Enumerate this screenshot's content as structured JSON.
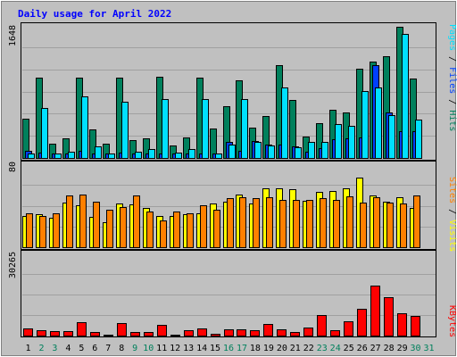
{
  "title": "Daily usage for April 2022",
  "colors": {
    "background": "#c0c0c0",
    "plot_background": "#c0c0c0",
    "grid": "#a0a0a0",
    "title": "#0000ff",
    "hits": "#00805c",
    "files": "#0040ff",
    "pages": "#00e0ff",
    "visits": "#ffff00",
    "sites": "#ff8000",
    "kbytes": "#ff0000",
    "axis_weekday": "#000000",
    "axis_weekend": "#00805c"
  },
  "chart_data": [
    {
      "type": "bar",
      "panel": "hits_files_pages",
      "ymax_label": "1648",
      "ylim": [
        0,
        1648
      ],
      "x": [
        1,
        2,
        3,
        4,
        5,
        6,
        7,
        8,
        9,
        10,
        11,
        12,
        13,
        14,
        15,
        16,
        17,
        18,
        19,
        20,
        21,
        22,
        23,
        24,
        25,
        26,
        27,
        28,
        29,
        30
      ],
      "series": [
        {
          "name": "Hits",
          "values": [
            485,
            990,
            180,
            240,
            995,
            350,
            175,
            995,
            220,
            240,
            1010,
            150,
            250,
            990,
            370,
            640,
            960,
            380,
            520,
            1155,
            720,
            270,
            435,
            595,
            565,
            1105,
            1200,
            1260,
            1630,
            980
          ]
        },
        {
          "name": "Files",
          "values": [
            90,
            70,
            60,
            60,
            90,
            50,
            50,
            70,
            50,
            50,
            60,
            60,
            50,
            60,
            50,
            200,
            90,
            210,
            170,
            165,
            145,
            80,
            120,
            230,
            240,
            250,
            1150,
            560,
            330,
            330
          ]
        },
        {
          "name": "Pages",
          "values": [
            50,
            620,
            60,
            80,
            760,
            140,
            60,
            700,
            80,
            110,
            735,
            70,
            110,
            725,
            60,
            170,
            725,
            200,
            160,
            875,
            130,
            200,
            195,
            420,
            400,
            825,
            875,
            535,
            1535,
            480
          ]
        }
      ]
    },
    {
      "type": "bar",
      "panel": "visits_sites",
      "ymax_label": "80",
      "ylim": [
        0,
        80
      ],
      "x": [
        1,
        2,
        3,
        4,
        5,
        6,
        7,
        8,
        9,
        10,
        11,
        12,
        13,
        14,
        15,
        16,
        17,
        18,
        19,
        20,
        21,
        22,
        23,
        24,
        25,
        26,
        27,
        28,
        29,
        30
      ],
      "series": [
        {
          "name": "Visits",
          "values": [
            30,
            32,
            28,
            43,
            40,
            29,
            24,
            42,
            41,
            38,
            30,
            30,
            32,
            33,
            42,
            44,
            51,
            42,
            57,
            57,
            56,
            45,
            53,
            54,
            57,
            67,
            50,
            44,
            48,
            38
          ]
        },
        {
          "name": "Sites",
          "values": [
            33,
            30,
            33,
            50,
            51,
            44,
            36,
            39,
            50,
            34,
            26,
            34,
            33,
            40,
            36,
            47,
            48,
            47,
            48,
            46,
            46,
            46,
            47,
            46,
            49,
            43,
            48,
            43,
            42,
            50
          ]
        }
      ]
    },
    {
      "type": "bar",
      "panel": "kbytes",
      "ymax_label": "30265",
      "ylim": [
        0,
        30265
      ],
      "x": [
        1,
        2,
        3,
        4,
        5,
        6,
        7,
        8,
        9,
        10,
        11,
        12,
        13,
        14,
        15,
        16,
        17,
        18,
        19,
        20,
        21,
        22,
        23,
        24,
        25,
        26,
        27,
        28,
        29,
        30
      ],
      "series": [
        {
          "name": "KBytes",
          "values": [
            2700,
            2100,
            1700,
            1700,
            5000,
            1200,
            400,
            4500,
            1300,
            1300,
            3900,
            400,
            2000,
            2600,
            700,
            2300,
            2300,
            2000,
            4200,
            2200,
            1200,
            3100,
            7500,
            2100,
            5200,
            9900,
            18300,
            14000,
            8200,
            7300
          ]
        }
      ]
    }
  ],
  "legends": {
    "top": [
      {
        "text": "Pages",
        "color_key": "pages"
      },
      {
        "text": " / ",
        "color_key": "axis_weekday"
      },
      {
        "text": "Files",
        "color_key": "files"
      },
      {
        "text": " / ",
        "color_key": "axis_weekday"
      },
      {
        "text": "Hits",
        "color_key": "hits"
      }
    ],
    "middle": [
      {
        "text": "Sites",
        "color_key": "sites"
      },
      {
        "text": " / ",
        "color_key": "axis_weekday"
      },
      {
        "text": "Visits",
        "color_key": "visits"
      }
    ],
    "bottom": [
      {
        "text": "KBytes",
        "color_key": "kbytes"
      }
    ]
  },
  "x_labels": [
    {
      "text": "1",
      "weekend": false
    },
    {
      "text": "2",
      "weekend": true
    },
    {
      "text": "3",
      "weekend": true
    },
    {
      "text": "4",
      "weekend": false
    },
    {
      "text": "5",
      "weekend": false
    },
    {
      "text": "6",
      "weekend": false
    },
    {
      "text": "7",
      "weekend": false
    },
    {
      "text": "8",
      "weekend": false
    },
    {
      "text": "9",
      "weekend": true
    },
    {
      "text": "10",
      "weekend": true
    },
    {
      "text": "11",
      "weekend": false
    },
    {
      "text": "12",
      "weekend": false
    },
    {
      "text": "13",
      "weekend": false
    },
    {
      "text": "14",
      "weekend": false
    },
    {
      "text": "15",
      "weekend": false
    },
    {
      "text": "16",
      "weekend": true
    },
    {
      "text": "17",
      "weekend": true
    },
    {
      "text": "18",
      "weekend": false
    },
    {
      "text": "19",
      "weekend": false
    },
    {
      "text": "20",
      "weekend": false
    },
    {
      "text": "21",
      "weekend": false
    },
    {
      "text": "22",
      "weekend": false
    },
    {
      "text": "23",
      "weekend": true
    },
    {
      "text": "24",
      "weekend": true
    },
    {
      "text": "25",
      "weekend": false
    },
    {
      "text": "26",
      "weekend": false
    },
    {
      "text": "27",
      "weekend": false
    },
    {
      "text": "28",
      "weekend": false
    },
    {
      "text": "29",
      "weekend": false
    },
    {
      "text": "30",
      "weekend": true
    },
    {
      "text": "31",
      "weekend": true
    }
  ]
}
